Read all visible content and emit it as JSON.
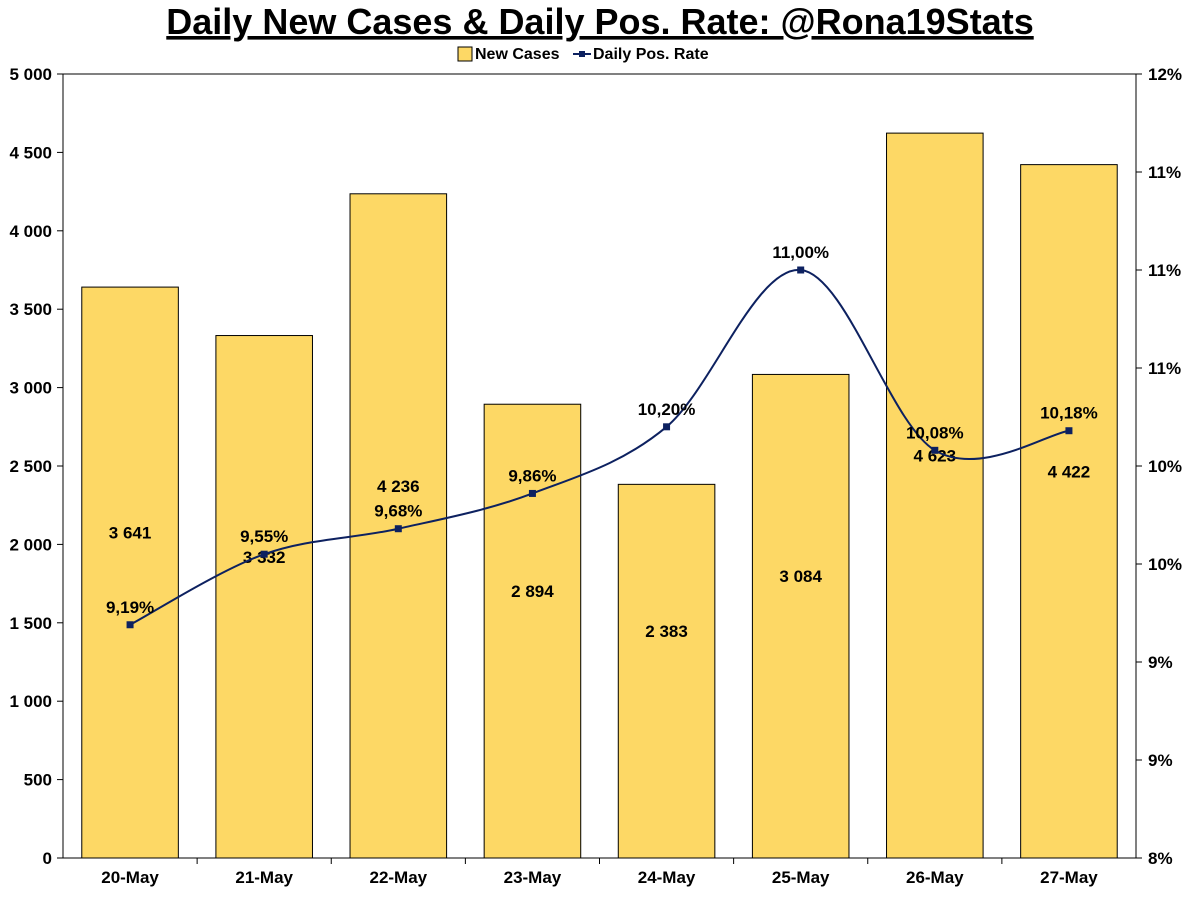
{
  "chart_data": {
    "type": "bar",
    "title": "Daily New Cases & Daily Pos. Rate: @Rona19Stats",
    "legend": {
      "placement": "top-center",
      "entries": [
        "New Cases",
        "Daily Pos. Rate"
      ]
    },
    "categories": [
      "20-May",
      "21-May",
      "22-May",
      "23-May",
      "24-May",
      "25-May",
      "26-May",
      "27-May"
    ],
    "series": [
      {
        "name": "New Cases",
        "type": "bar",
        "axis": "left",
        "color": "#FDD865",
        "values": [
          3641,
          3332,
          4236,
          2894,
          2383,
          3084,
          4623,
          4422
        ],
        "labels": [
          "3 641",
          "3 332",
          "4 236",
          "2 894",
          "2 383",
          "3 084",
          "4 623",
          "4 422"
        ]
      },
      {
        "name": "Daily Pos. Rate",
        "type": "line",
        "axis": "right",
        "color": "#0D2160",
        "values": [
          9.19,
          9.55,
          9.68,
          9.86,
          10.2,
          11.0,
          10.08,
          10.18
        ],
        "labels": [
          "9,19%",
          "9,55%",
          "9,68%",
          "9,86%",
          "10,20%",
          "11,00%",
          "10,08%",
          "10,18%"
        ]
      }
    ],
    "y_left": {
      "range": [
        0,
        5000
      ],
      "ticks": [
        0,
        500,
        1000,
        1500,
        2000,
        2500,
        3000,
        3500,
        4000,
        4500,
        5000
      ],
      "tick_labels": [
        "0",
        "500",
        "1 000",
        "1 500",
        "2 000",
        "2 500",
        "3 000",
        "3 500",
        "4 000",
        "4 500",
        "5 000"
      ]
    },
    "y_right": {
      "range": [
        8,
        12
      ],
      "ticks": [
        8,
        8.5,
        9,
        9.5,
        10,
        10.5,
        11,
        11.5,
        12
      ],
      "tick_labels": [
        "8%",
        "9%",
        "9%",
        "10%",
        "10%",
        "11%",
        "11%",
        "11%",
        "12%"
      ]
    },
    "grid": false
  }
}
